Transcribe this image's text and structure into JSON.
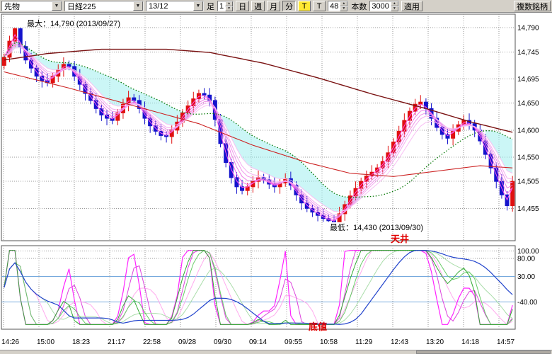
{
  "toolbar": {
    "instrument_type": "先物",
    "symbol": "日経225",
    "contract_month": "13/12",
    "bar_label": "足",
    "bar_value": "1",
    "period_buttons": [
      "日",
      "週",
      "月",
      "分"
    ],
    "active_period": "分",
    "tick_toggle_label": "T",
    "tick_button_label": "T",
    "tick_count_value": "48",
    "bar_count_label": "本数",
    "bar_count_value": "3000",
    "apply_label": "適用",
    "multi_symbol_label": "複数銘柄"
  },
  "main_chart": {
    "annotations": {
      "max_label": "最大：14,790 (2013/09/27)",
      "min_label": "最低：14,430 (2013/09/30)",
      "ceiling_label": "天井",
      "bottom_label": "底値"
    }
  },
  "chart_data": [
    {
      "type": "candlestick",
      "title": "日経225 先物 13/12 1分足",
      "up_color": "#e01010",
      "down_color": "#1414cc",
      "first_open": 14720,
      "wick": 7,
      "closes": [
        14735,
        14765,
        14788,
        14755,
        14730,
        14715,
        14700,
        14692,
        14688,
        14700,
        14712,
        14722,
        14718,
        14700,
        14685,
        14668,
        14655,
        14640,
        14628,
        14622,
        14618,
        14632,
        14648,
        14660,
        14655,
        14640,
        14622,
        14608,
        14598,
        14590,
        14588,
        14600,
        14615,
        14632,
        14645,
        14658,
        14668,
        14665,
        14655,
        14620,
        14575,
        14540,
        14512,
        14495,
        14488,
        14495,
        14505,
        14512,
        14508,
        14500,
        14495,
        14502,
        14510,
        14498,
        14480,
        14465,
        14455,
        14448,
        14442,
        14436,
        14432,
        14430,
        14445,
        14462,
        14478,
        14492,
        14505,
        14515,
        14522,
        14530,
        14542,
        14558,
        14578,
        14598,
        14618,
        14635,
        14648,
        14652,
        14640,
        14622,
        14605,
        14592,
        14585,
        14598,
        14610,
        14618,
        14612,
        14600,
        14580,
        14555,
        14530,
        14505,
        14480,
        14460,
        14505
      ],
      "max_point": {
        "price": 14790,
        "date": "2013/09/27"
      },
      "min_point": {
        "price": 14430,
        "date": "2013/09/30"
      },
      "y_axis": {
        "labels": [
          "14,790",
          "14,745",
          "14,695",
          "14,650",
          "14,600",
          "14,550",
          "14,505",
          "14,455"
        ],
        "values": [
          14790,
          14745,
          14695,
          14650,
          14600,
          14550,
          14505,
          14455
        ],
        "view_max": 14815,
        "view_min": 14395
      },
      "x_labels": [
        "14:26",
        "15:00",
        "18:23",
        "21:17",
        "22:58",
        "09/28",
        "09/30",
        "09:14",
        "09:55",
        "10:58",
        "11:29",
        "12:43",
        "13:20",
        "14:18",
        "14:57"
      ],
      "overlays": {
        "ema_ribbon_periods": [
          2,
          3,
          4,
          5,
          6,
          8
        ],
        "ema_ribbon_colors": [
          "#ff50f0",
          "#f46ae8",
          "#ec80e6",
          "#f096ec",
          "#f4acf0",
          "#f8c0f4"
        ],
        "ma_green": {
          "period": 21,
          "color": "#067806"
        },
        "line_long": {
          "color": "#7a1212",
          "width": 1.4,
          "points": [
            [
              0,
              14730
            ],
            [
              8,
              14742
            ],
            [
              18,
              14750
            ],
            [
              30,
              14750
            ],
            [
              38,
              14744
            ],
            [
              48,
              14724
            ],
            [
              58,
              14697
            ],
            [
              68,
              14667
            ],
            [
              78,
              14640
            ],
            [
              86,
              14616
            ],
            [
              94,
              14596
            ]
          ]
        },
        "line_mid": {
          "color": "#cc2222",
          "width": 1.1,
          "points": [
            [
              0,
              14708
            ],
            [
              12,
              14678
            ],
            [
              24,
              14645
            ],
            [
              36,
              14612
            ],
            [
              46,
              14572
            ],
            [
              56,
              14540
            ],
            [
              64,
              14520
            ],
            [
              72,
              14514
            ],
            [
              80,
              14524
            ],
            [
              88,
              14534
            ],
            [
              94,
              14530
            ]
          ]
        },
        "cloud_color": "rgba(140,235,235,0.45)"
      }
    },
    {
      "type": "line",
      "title": "オシレーター",
      "labels": [
        "100.00",
        "80.00",
        "30.00",
        "-40.00"
      ],
      "levels": [
        100,
        80,
        30,
        -40
      ],
      "threshold_levels": [
        30,
        -40
      ],
      "threshold_color": "#77aadd",
      "view_max": 115,
      "view_min": -115,
      "fast_period": 9,
      "slow_period": 17,
      "signal_period": 26,
      "line_colors": {
        "fast": "#ff22ff",
        "fast_sma3": "#dd44dd",
        "fast_sma6": "#ffaaee",
        "slow": "#33aa33",
        "slow_sma3": "#66cc66",
        "slow_sma8": "#aaddaa",
        "signal": "#2244cc"
      }
    }
  ]
}
